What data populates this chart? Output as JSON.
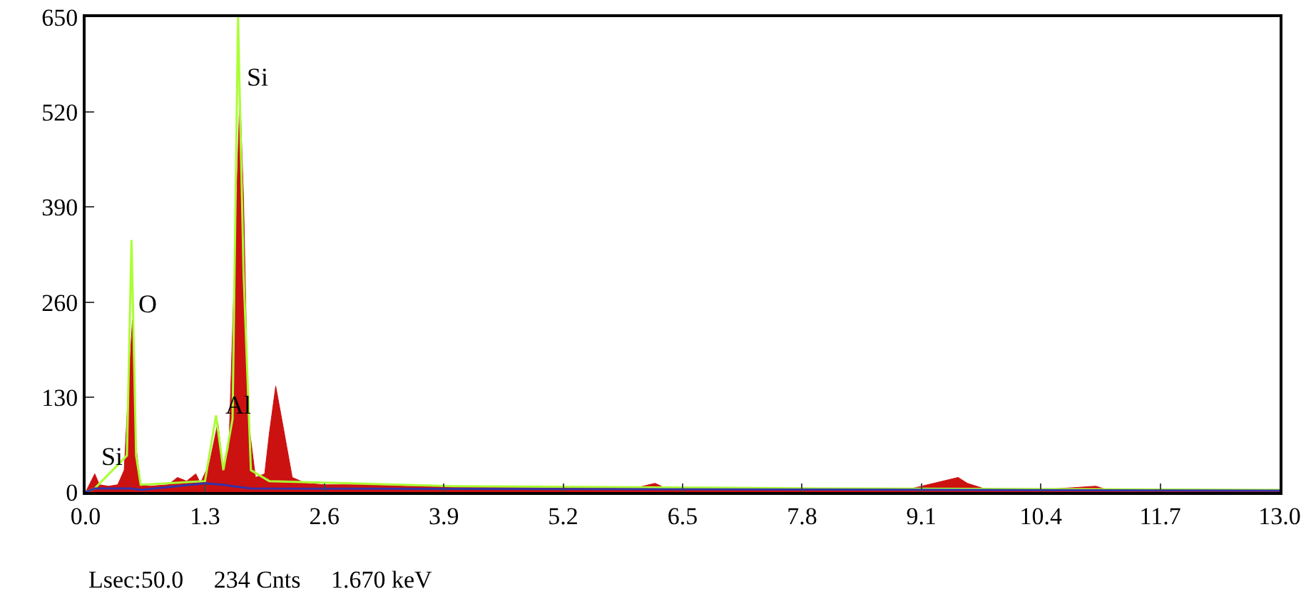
{
  "chart_data": {
    "type": "line",
    "xlim": [
      0,
      13
    ],
    "ylim": [
      0,
      650
    ],
    "xticks": [
      {
        "value": 0,
        "label": "0.0"
      },
      1.3,
      2.6,
      3.9,
      5.2,
      6.5,
      7.8,
      9.1,
      10.4,
      11.7,
      {
        "value": 13,
        "label": "13.0"
      }
    ],
    "yticks": [
      0,
      130,
      260,
      390,
      520,
      650
    ],
    "grid": false,
    "marker": "none",
    "series": [
      {
        "type": "area",
        "color": "#cc1111",
        "x": [
          0,
          0.1,
          0.15,
          0.25,
          0.35,
          0.42,
          0.47,
          0.51,
          0.55,
          0.6,
          0.7,
          0.9,
          1.0,
          1.1,
          1.2,
          1.25,
          1.35,
          1.44,
          1.5,
          1.56,
          1.62,
          1.68,
          1.72,
          1.77,
          1.85,
          1.95,
          2.0,
          2.07,
          2.15,
          2.25,
          2.4,
          2.6,
          3.0,
          3.5,
          4.0,
          5.0,
          6.0,
          6.2,
          6.3,
          7.0,
          8.0,
          9.0,
          9.5,
          9.6,
          9.8,
          10.5,
          11.0,
          11.1,
          12,
          13
        ],
        "values": [
          0,
          25,
          10,
          8,
          10,
          30,
          150,
          235,
          60,
          10,
          8,
          10,
          20,
          15,
          25,
          12,
          40,
          95,
          30,
          60,
          300,
          545,
          400,
          100,
          20,
          25,
          80,
          145,
          90,
          20,
          12,
          10,
          10,
          8,
          8,
          6,
          6,
          12,
          6,
          5,
          5,
          5,
          20,
          12,
          4,
          4,
          8,
          4,
          3,
          3
        ]
      },
      {
        "type": "line",
        "color": "#aaff33",
        "x": [
          0,
          0.1,
          0.45,
          0.5,
          0.55,
          0.6,
          1.3,
          1.42,
          1.5,
          1.6,
          1.66,
          1.72,
          1.8,
          2.0,
          4,
          8,
          13
        ],
        "values": [
          0,
          5,
          50,
          345,
          50,
          10,
          15,
          105,
          30,
          100,
          650,
          300,
          30,
          15,
          8,
          5,
          3
        ]
      },
      {
        "type": "line",
        "color": "#3333aa",
        "x": [
          0,
          0.1,
          0.5,
          0.6,
          1.3,
          1.5,
          1.6,
          1.8,
          13
        ],
        "values": [
          0,
          5,
          5,
          3,
          12,
          10,
          8,
          5,
          2
        ]
      }
    ],
    "annotations": [
      {
        "text": "Si",
        "x": 0.1,
        "y": 25
      },
      {
        "text": "O",
        "x": 0.5,
        "y": 235
      },
      {
        "text": "Al",
        "x": 1.44,
        "y": 95
      },
      {
        "text": "Si",
        "x": 1.68,
        "y": 545
      },
      "Lsec:50.0     234 Cnts     1.670 keV"
    ]
  }
}
